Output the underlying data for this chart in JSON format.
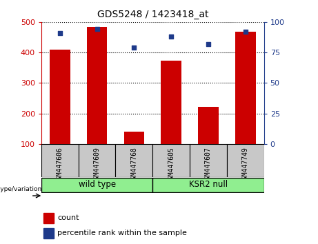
{
  "title": "GDS5248 / 1423418_at",
  "categories": [
    "GSM447606",
    "GSM447609",
    "GSM447768",
    "GSM447605",
    "GSM447607",
    "GSM447749"
  ],
  "counts": [
    410,
    483,
    140,
    373,
    222,
    468
  ],
  "percentile_ranks": [
    91,
    94,
    79,
    88,
    82,
    92
  ],
  "ylim_left": [
    100,
    500
  ],
  "ylim_right": [
    0,
    100
  ],
  "yticks_left": [
    100,
    200,
    300,
    400,
    500
  ],
  "yticks_right": [
    0,
    25,
    50,
    75,
    100
  ],
  "bar_color": "#CC0000",
  "dot_color": "#1E3A8A",
  "left_axis_color": "#CC0000",
  "right_axis_color": "#1E3A8A",
  "grid_color": "#000000",
  "label_box_color": "#C8C8C8",
  "group_box_color": "#90EE90",
  "legend_count_color": "#CC0000",
  "legend_pct_color": "#1E3A8A",
  "xlabel_genotype": "genotype/variation",
  "legend_count": "count",
  "legend_pct": "percentile rank within the sample",
  "group_labels": [
    "wild type",
    "KSR2 null"
  ]
}
